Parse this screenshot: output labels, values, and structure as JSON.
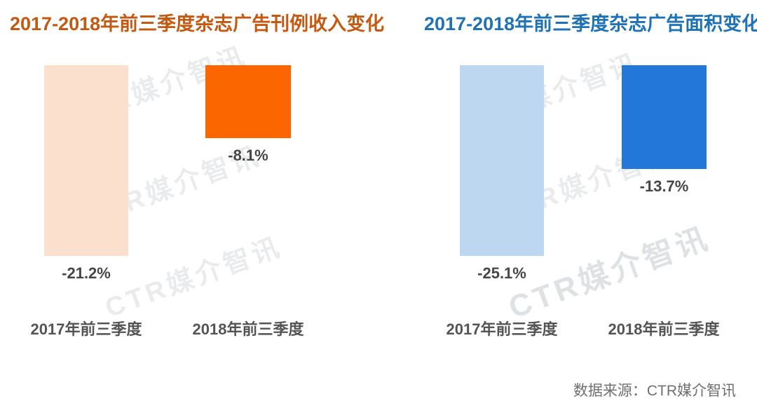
{
  "watermark": {
    "text": "CTR媒介智讯"
  },
  "footer": {
    "source_note": "数据来源：CTR媒介智讯"
  },
  "chart_data": [
    {
      "type": "bar",
      "title": "2017-2018年前三季度杂志广告刊例收入变化",
      "title_color": "#C45911",
      "categories": [
        "2017年前三季度",
        "2018年前三季度"
      ],
      "values": [
        -21.2,
        -8.1
      ],
      "data_labels": [
        "-21.2%",
        "-8.1%"
      ],
      "colors": [
        "#FBE1CD",
        "#FC6600"
      ],
      "unit": "%",
      "xlabel": "",
      "ylabel": "",
      "ylim": [
        -21.2,
        0
      ],
      "grid": false,
      "legend": "none",
      "axis_visible": false,
      "bars_hang_from_zero_at_top": true
    },
    {
      "type": "bar",
      "title": "2017-2018年前三季度杂志广告面积变化",
      "title_color": "#1F72B5",
      "categories": [
        "2017年前三季度",
        "2018年前三季度"
      ],
      "values": [
        -25.1,
        -13.7
      ],
      "data_labels": [
        "-25.1%",
        "-13.7%"
      ],
      "colors": [
        "#BDD7F0",
        "#2377D8"
      ],
      "unit": "%",
      "xlabel": "",
      "ylabel": "",
      "ylim": [
        -25.1,
        0
      ],
      "grid": false,
      "legend": "none",
      "axis_visible": false,
      "bars_hang_from_zero_at_top": true
    }
  ]
}
